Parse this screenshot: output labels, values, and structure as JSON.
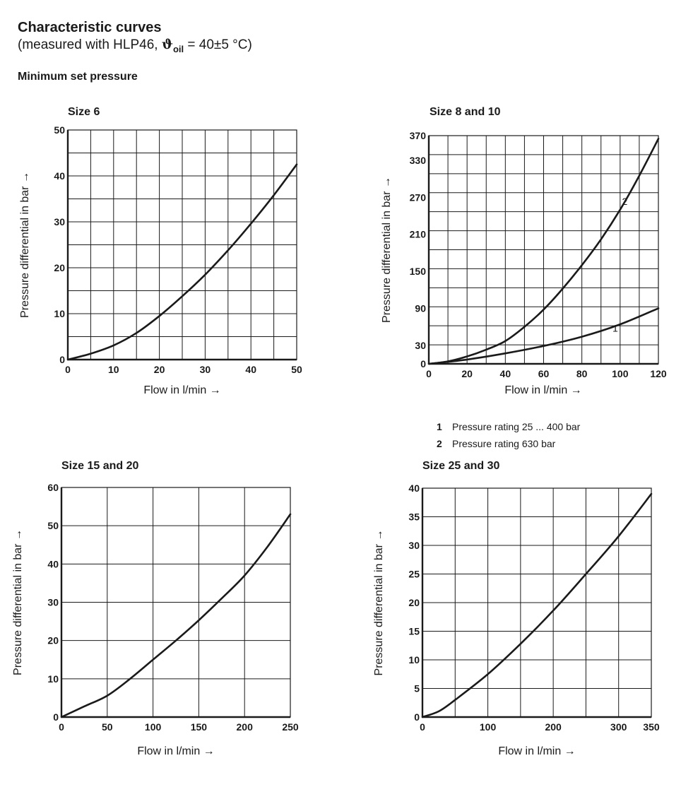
{
  "header": {
    "title": "Characteristic curves",
    "subtitle_prefix": "(measured with HLP46, ",
    "subtitle_symbol": "ϑ",
    "subtitle_subscript": "oil",
    "subtitle_suffix": " = 40±5 °C)",
    "section": "Minimum set pressure"
  },
  "legend": [
    {
      "num": "1",
      "text": "Pressure rating 25 ... 400 bar"
    },
    {
      "num": "2",
      "text": "Pressure rating 630 bar"
    }
  ],
  "chart_data": [
    {
      "type": "line",
      "title": "Size 6",
      "xlabel": "Flow in l/min →",
      "ylabel": "Pressure differential in bar →",
      "xlim": [
        0,
        50
      ],
      "ylim": [
        0,
        50
      ],
      "xticks": [
        0,
        10,
        20,
        30,
        40,
        50
      ],
      "yticks": [
        0,
        10,
        20,
        30,
        40,
        50
      ],
      "grid": true,
      "series": [
        {
          "label": "",
          "x": [
            0,
            5,
            10,
            15,
            20,
            25,
            30,
            35,
            40,
            45,
            50
          ],
          "y": [
            0,
            1.3,
            3.1,
            5.8,
            9.5,
            13.8,
            18.5,
            23.8,
            29.6,
            35.8,
            42.5
          ]
        }
      ]
    },
    {
      "type": "line",
      "title": "Size 8 and 10",
      "xlabel": "Flow in l/min →",
      "ylabel": "Pressure differential in bar →",
      "xlim": [
        0,
        120
      ],
      "ylim": [
        0,
        370
      ],
      "xticks": [
        0,
        20,
        40,
        60,
        80,
        100,
        120
      ],
      "yticks": [
        0,
        30,
        90,
        150,
        210,
        270,
        330,
        370
      ],
      "grid": true,
      "series": [
        {
          "label": "2",
          "x": [
            0,
            10,
            20,
            30,
            40,
            50,
            60,
            70,
            80,
            90,
            100,
            110,
            120
          ],
          "y": [
            0,
            4,
            12,
            23,
            37,
            60,
            88,
            122,
            160,
            202,
            250,
            305,
            365
          ]
        },
        {
          "label": "1",
          "x": [
            0,
            20,
            40,
            60,
            80,
            100,
            120
          ],
          "y": [
            0,
            7,
            17,
            29,
            44,
            64,
            90
          ]
        }
      ]
    },
    {
      "type": "line",
      "title": "Size 15 and 20",
      "xlabel": "Flow in l/min →",
      "ylabel": "Pressure differential in bar →",
      "xlim": [
        0,
        250
      ],
      "ylim": [
        0,
        60
      ],
      "xticks": [
        0,
        50,
        100,
        150,
        200,
        250
      ],
      "yticks": [
        0,
        10,
        20,
        30,
        40,
        50,
        60
      ],
      "grid": true,
      "series": [
        {
          "label": "",
          "x": [
            0,
            25,
            50,
            75,
            100,
            125,
            150,
            175,
            200,
            225,
            250
          ],
          "y": [
            0,
            2.8,
            5.6,
            10,
            15,
            20,
            25.3,
            31,
            37,
            44.5,
            53
          ]
        }
      ]
    },
    {
      "type": "line",
      "title": "Size 25 and 30",
      "xlabel": "Flow in l/min →",
      "ylabel": "Pressure differential in bar →",
      "xlim": [
        0,
        350
      ],
      "ylim": [
        0,
        40
      ],
      "xticks": [
        0,
        100,
        200,
        300,
        350
      ],
      "yticks": [
        0,
        5,
        10,
        15,
        20,
        25,
        30,
        35,
        40
      ],
      "grid": true,
      "series": [
        {
          "label": "",
          "x": [
            0,
            25,
            50,
            100,
            150,
            200,
            250,
            300,
            350
          ],
          "y": [
            0,
            1,
            3,
            7.5,
            12.8,
            18.6,
            25,
            31.6,
            39
          ]
        }
      ]
    }
  ]
}
